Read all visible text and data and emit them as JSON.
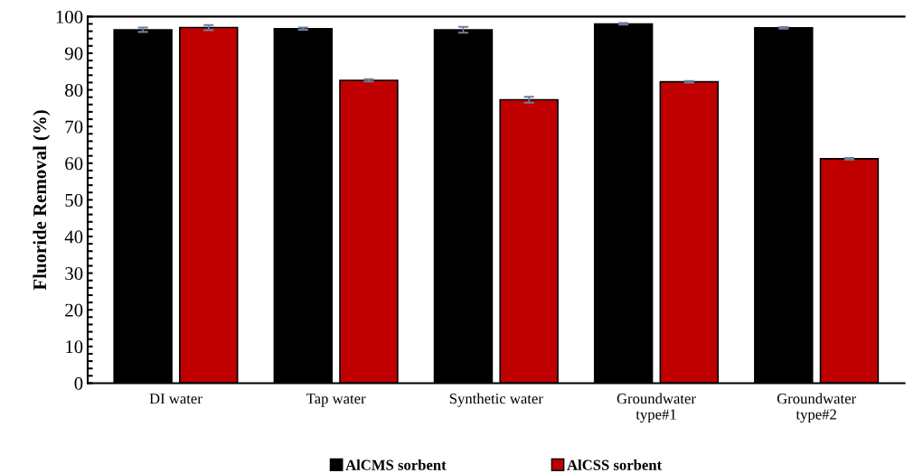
{
  "chart_data": {
    "type": "bar",
    "ylabel": "Fluoride Removal (%)",
    "categories": [
      "DI water",
      "Tap water",
      "Synthetic water",
      "Groundwater\ntype#1",
      "Groundwater\ntype#2"
    ],
    "series": [
      {
        "name": "AlCMS sorbent",
        "color": "#000000",
        "values": [
          96.4,
          96.7,
          96.4,
          98.0,
          96.9
        ],
        "errors": [
          0.6,
          0.3,
          0.8,
          0.2,
          0.2
        ]
      },
      {
        "name": "AlCSS sorbent",
        "color": "#c00000",
        "values": [
          97.0,
          82.6,
          77.3,
          82.2,
          61.2
        ],
        "errors": [
          0.7,
          0.3,
          0.8,
          0.2,
          0.2
        ]
      }
    ],
    "ylim": [
      0,
      100
    ],
    "yticks": [
      0,
      {
        "value": 2,
        "label": null
      },
      {
        "value": 4,
        "label": null
      },
      {
        "value": 6,
        "label": null
      },
      {
        "value": 8,
        "label": null
      },
      10,
      {
        "value": 12,
        "label": null
      },
      {
        "value": 14,
        "label": null
      },
      {
        "value": 16,
        "label": null
      },
      {
        "value": 18,
        "label": null
      },
      20,
      {
        "value": 22,
        "label": null
      },
      {
        "value": 24,
        "label": null
      },
      {
        "value": 26,
        "label": null
      },
      {
        "value": 28,
        "label": null
      },
      30,
      {
        "value": 32,
        "label": null
      },
      {
        "value": 34,
        "label": null
      },
      {
        "value": 36,
        "label": null
      },
      {
        "value": 38,
        "label": null
      },
      40,
      {
        "value": 42,
        "label": null
      },
      {
        "value": 44,
        "label": null
      },
      {
        "value": 46,
        "label": null
      },
      {
        "value": 48,
        "label": null
      },
      50,
      {
        "value": 52,
        "label": null
      },
      {
        "value": 54,
        "label": null
      },
      {
        "value": 56,
        "label": null
      },
      {
        "value": 58,
        "label": null
      },
      60,
      {
        "value": 62,
        "label": null
      },
      {
        "value": 64,
        "label": null
      },
      {
        "value": 66,
        "label": null
      },
      {
        "value": 68,
        "label": null
      },
      70,
      {
        "value": 72,
        "label": null
      },
      {
        "value": 74,
        "label": null
      },
      {
        "value": 76,
        "label": null
      },
      {
        "value": 78,
        "label": null
      },
      80,
      {
        "value": 82,
        "label": null
      },
      {
        "value": 84,
        "label": null
      },
      {
        "value": 86,
        "label": null
      },
      {
        "value": 88,
        "label": null
      },
      90,
      {
        "value": 92,
        "label": null
      },
      {
        "value": 94,
        "label": null
      },
      {
        "value": 96,
        "label": null
      },
      {
        "value": 98,
        "label": null
      },
      100
    ],
    "grid": false,
    "legend": "bottom"
  }
}
